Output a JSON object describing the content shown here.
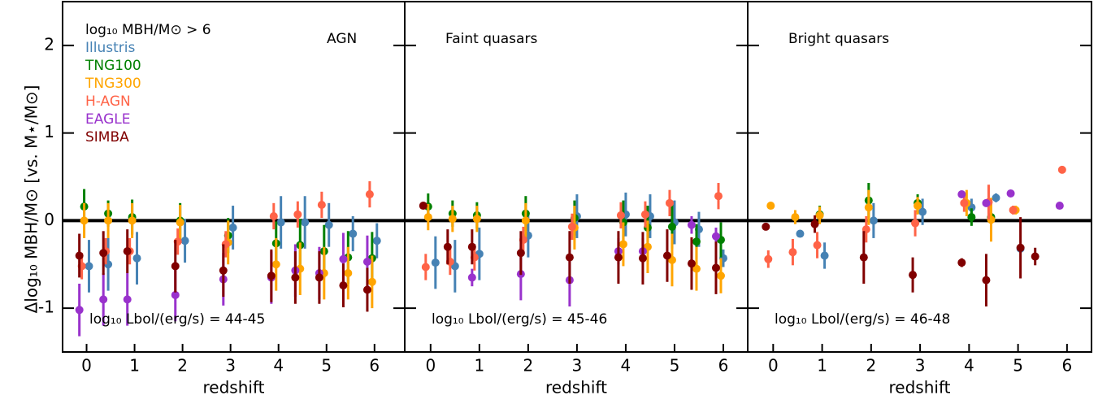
{
  "chart_data": [
    {
      "type": "scatter",
      "xlabel": "redshift",
      "ylabel": "Δlog₁₀ MBH/M⊙   [vs. M⋆/M⊙]",
      "legend_title": "log₁₀ MBH/M⊙ > 6",
      "annotations": [
        "AGN",
        "log₁₀ Lbol/(erg/s) = 44-45"
      ],
      "xlim": [
        -0.5,
        6.63
      ],
      "ylim": [
        -1.5,
        2.5
      ],
      "xticks": [
        0,
        1,
        2,
        3,
        4,
        5,
        6
      ],
      "yticks": [
        -1,
        0,
        1,
        2
      ],
      "hline": 0,
      "series": [
        {
          "name": "Illustris",
          "color": "#4682b4",
          "x": [
            0.05,
            0.45,
            1.05,
            2.05,
            3.05,
            4.05,
            4.55,
            5.05,
            5.55,
            6.05
          ],
          "values": [
            -0.52,
            -0.5,
            -0.43,
            -0.23,
            -0.08,
            -0.02,
            -0.02,
            -0.05,
            -0.15,
            -0.23
          ],
          "errors": [
            0.3,
            0.3,
            0.3,
            0.25,
            0.25,
            0.3,
            0.3,
            0.25,
            0.2,
            0.2
          ]
        },
        {
          "name": "TNG100",
          "color": "#008000",
          "x": [
            -0.05,
            0.45,
            0.95,
            1.95,
            2.95,
            3.95,
            4.45,
            4.95,
            5.45,
            5.95
          ],
          "values": [
            0.16,
            0.08,
            0.04,
            0.0,
            -0.17,
            -0.26,
            -0.28,
            -0.35,
            -0.42,
            -0.43
          ],
          "errors": [
            0.2,
            0.15,
            0.2,
            0.2,
            0.2,
            0.25,
            0.3,
            0.3,
            0.3,
            0.3
          ]
        },
        {
          "name": "TNG300",
          "color": "#ffa500",
          "x": [
            -0.05,
            0.45,
            0.95,
            1.95,
            2.95,
            3.95,
            4.45,
            4.95,
            5.45,
            5.95
          ],
          "values": [
            0.0,
            0.0,
            0.0,
            -0.02,
            -0.25,
            -0.5,
            -0.55,
            -0.6,
            -0.6,
            -0.7
          ],
          "errors": [
            0.2,
            0.2,
            0.2,
            0.2,
            0.25,
            0.3,
            0.3,
            0.3,
            0.3,
            0.3
          ]
        },
        {
          "name": "H-AGN",
          "color": "#ff6347",
          "x": [
            -0.1,
            0.4,
            0.9,
            1.9,
            2.9,
            3.9,
            4.4,
            4.9,
            5.9
          ],
          "values": [
            -0.52,
            -0.35,
            -0.35,
            -0.24,
            -0.27,
            0.05,
            0.07,
            0.18,
            0.3
          ],
          "errors": [
            0.15,
            0.15,
            0.15,
            0.15,
            0.15,
            0.15,
            0.15,
            0.15,
            0.15
          ]
        },
        {
          "name": "EAGLE",
          "color": "#9932cc",
          "x": [
            -0.15,
            0.35,
            0.85,
            1.85,
            2.85,
            3.85,
            4.35,
            4.85,
            5.35,
            5.85
          ],
          "values": [
            -1.02,
            -0.9,
            -0.9,
            -0.85,
            -0.67,
            -0.65,
            -0.57,
            -0.6,
            -0.44,
            -0.47
          ],
          "errors": [
            0.3,
            0.3,
            0.3,
            0.3,
            0.3,
            0.3,
            0.3,
            0.3,
            0.3,
            0.3
          ]
        },
        {
          "name": "SIMBA",
          "color": "#800000",
          "x": [
            -0.15,
            0.35,
            0.85,
            1.85,
            2.85,
            3.85,
            4.35,
            4.85,
            5.35,
            5.85
          ],
          "values": [
            -0.4,
            -0.37,
            -0.35,
            -0.52,
            -0.57,
            -0.63,
            -0.65,
            -0.65,
            -0.74,
            -0.79
          ],
          "errors": [
            0.25,
            0.25,
            0.25,
            0.3,
            0.3,
            0.3,
            0.3,
            0.3,
            0.25,
            0.25
          ]
        }
      ]
    },
    {
      "type": "scatter",
      "xlabel": "redshift",
      "annotations": [
        "Faint quasars",
        "log₁₀ Lbol/(erg/s) = 45-46"
      ],
      "xlim": [
        -0.53,
        6.5
      ],
      "ylim": [
        -1.5,
        2.5
      ],
      "xticks": [
        0,
        1,
        2,
        3,
        4,
        5,
        6
      ],
      "hline": 0,
      "series": [
        {
          "color": "#4682b4",
          "x": [
            0.1,
            0.5,
            1.0,
            2.0,
            3.0,
            4.0,
            4.5,
            5.0,
            5.5,
            6.0
          ],
          "values": [
            -0.48,
            -0.52,
            -0.38,
            -0.17,
            0.05,
            0.07,
            0.05,
            -0.02,
            -0.1,
            -0.43
          ],
          "errors": [
            0.3,
            0.3,
            0.3,
            0.25,
            0.25,
            0.25,
            0.25,
            0.25,
            0.2,
            0.1
          ]
        },
        {
          "color": "#008000",
          "x": [
            -0.05,
            0.45,
            0.95,
            1.95,
            2.95,
            3.95,
            4.45,
            4.95,
            5.45,
            5.95
          ],
          "values": [
            0.16,
            0.08,
            0.06,
            0.08,
            0.03,
            -0.02,
            -0.08,
            -0.07,
            -0.24,
            -0.22
          ],
          "errors": [
            0.15,
            0.15,
            0.15,
            0.2,
            0.2,
            0.25,
            0.25,
            0.25,
            0.2,
            0.2
          ]
        },
        {
          "color": "#ffa500",
          "x": [
            -0.05,
            0.45,
            0.95,
            1.95,
            2.95,
            3.95,
            4.45,
            4.95,
            5.45,
            5.95
          ],
          "values": [
            0.04,
            0.02,
            0.02,
            0.0,
            -0.08,
            -0.27,
            -0.3,
            -0.45,
            -0.55,
            -0.63
          ],
          "errors": [
            0.15,
            0.15,
            0.15,
            0.2,
            0.25,
            0.25,
            0.3,
            0.3,
            0.25,
            0.2
          ]
        },
        {
          "color": "#ff6347",
          "x": [
            -0.1,
            0.4,
            0.9,
            1.9,
            2.9,
            3.9,
            4.4,
            4.9,
            5.9
          ],
          "values": [
            -0.53,
            -0.47,
            -0.42,
            -0.22,
            -0.07,
            0.06,
            0.07,
            0.2,
            0.28
          ],
          "errors": [
            0.15,
            0.15,
            0.15,
            0.15,
            0.15,
            0.15,
            0.15,
            0.15,
            0.15
          ]
        },
        {
          "color": "#9932cc",
          "x": [
            0.85,
            1.85,
            2.85,
            3.85,
            4.35,
            5.35,
            5.85
          ],
          "values": [
            -0.65,
            -0.61,
            -0.68,
            -0.35,
            -0.35,
            -0.05,
            -0.18
          ],
          "errors": [
            0.1,
            0.3,
            0.3,
            0.15,
            0.15,
            0.1,
            0.1
          ]
        },
        {
          "color": "#800000",
          "x": [
            -0.15,
            0.35,
            0.85,
            1.85,
            2.85,
            3.85,
            4.35,
            4.85,
            5.35,
            5.85
          ],
          "values": [
            0.17,
            -0.3,
            -0.3,
            -0.37,
            -0.42,
            -0.42,
            -0.43,
            -0.4,
            -0.49,
            -0.54
          ],
          "errors": [
            0.02,
            0.2,
            0.2,
            0.25,
            0.3,
            0.3,
            0.3,
            0.3,
            0.3,
            0.3
          ]
        }
      ]
    },
    {
      "type": "scatter",
      "xlabel": "redshift",
      "annotations": [
        "Bright quasars",
        "log₁₀ Lbol/(erg/s) = 46-48"
      ],
      "xlim": [
        -0.52,
        6.5
      ],
      "ylim": [
        -1.5,
        2.5
      ],
      "xticks": [
        0,
        1,
        2,
        3,
        4,
        5,
        6
      ],
      "hline": 0,
      "series": [
        {
          "color": "#4682b4",
          "x": [
            0.55,
            1.05,
            2.05,
            3.05,
            4.05,
            4.55,
            5.05
          ],
          "values": [
            -0.15,
            -0.4,
            0.0,
            0.1,
            0.15,
            0.26,
            -0.32
          ],
          "errors": [
            0.02,
            0.15,
            0.2,
            0.15,
            0.1,
            0.05,
            0.02
          ]
        },
        {
          "color": "#008000",
          "x": [
            0.95,
            1.95,
            2.95,
            4.05,
            4.45
          ],
          "values": [
            0.07,
            0.23,
            0.2,
            0.04,
            0.04
          ],
          "errors": [
            0.1,
            0.2,
            0.1,
            0.1,
            0.05
          ]
        },
        {
          "color": "#ffa500",
          "x": [
            -0.05,
            0.45,
            0.95,
            1.95,
            2.95,
            3.95,
            4.45,
            4.95
          ],
          "values": [
            0.17,
            0.04,
            0.06,
            0.15,
            0.17,
            0.2,
            0.01,
            0.12
          ],
          "errors": [
            0.02,
            0.08,
            0.1,
            0.2,
            0.1,
            0.15,
            0.25,
            0.05
          ]
        },
        {
          "color": "#ff6347",
          "x": [
            -0.1,
            0.4,
            0.9,
            1.9,
            2.9,
            3.9,
            4.4,
            4.9,
            5.9
          ],
          "values": [
            -0.44,
            -0.36,
            -0.28,
            -0.1,
            -0.03,
            0.2,
            0.21,
            0.12,
            0.58
          ],
          "errors": [
            0.1,
            0.15,
            0.15,
            0.15,
            0.15,
            0.1,
            0.2,
            0.05,
            0.02
          ]
        },
        {
          "color": "#9932cc",
          "x": [
            3.85,
            4.35,
            4.85,
            5.85
          ],
          "values": [
            0.3,
            0.2,
            0.31,
            0.17
          ],
          "errors": [
            0.02,
            0.02,
            0.02,
            0.02
          ]
        },
        {
          "color": "#800000",
          "x": [
            -0.15,
            0.85,
            1.85,
            2.85,
            3.85,
            4.35,
            5.05,
            5.35
          ],
          "values": [
            -0.07,
            -0.04,
            -0.42,
            -0.62,
            -0.48,
            -0.68,
            -0.31,
            -0.41
          ],
          "errors": [
            0.02,
            0.1,
            0.3,
            0.2,
            0.05,
            0.3,
            0.35,
            0.1
          ]
        }
      ]
    }
  ]
}
